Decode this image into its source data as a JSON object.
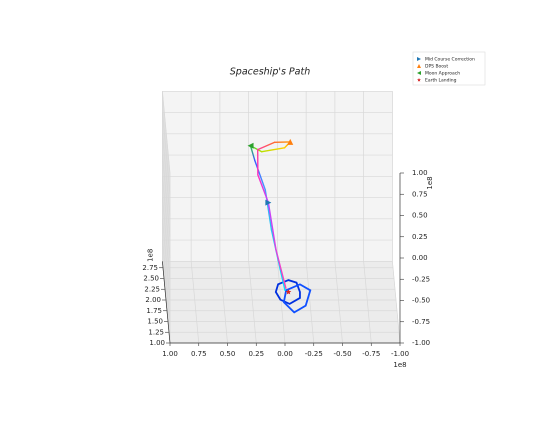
{
  "chart_data": {
    "type": "line3d",
    "title": "Spaceship's Path",
    "xlim": [
      1.0,
      -1.0
    ],
    "ylim": [
      1.0,
      2.9
    ],
    "zlim": [
      -1.0,
      1.0
    ],
    "xticks": [
      {
        "value": 1.0,
        "label": "1.00"
      },
      {
        "value": 0.75,
        "label": "0.75"
      },
      {
        "value": 0.5,
        "label": "0.50"
      },
      {
        "value": 0.25,
        "label": "0.25"
      },
      {
        "value": 0,
        "label": "0.00"
      },
      {
        "value": -0.25,
        "label": "-0.25"
      },
      {
        "value": -0.5,
        "label": "-0.50"
      },
      {
        "value": -0.75,
        "label": "-0.75"
      },
      {
        "value": -1.0,
        "label": "-1.00"
      }
    ],
    "yticks": [
      {
        "value": 1.0,
        "label": "1.00"
      },
      {
        "value": 1.25,
        "label": "1.25"
      },
      {
        "value": 1.5,
        "label": "1.50"
      },
      {
        "value": 1.75,
        "label": "1.75"
      },
      {
        "value": 2.0,
        "label": "2.00"
      },
      {
        "value": 2.25,
        "label": "2.25"
      },
      {
        "value": 2.5,
        "label": "2.50"
      },
      {
        "value": 2.75,
        "label": "2.75"
      }
    ],
    "zticks": [
      {
        "value": -1.0,
        "label": "-1.00"
      },
      {
        "value": -0.75,
        "label": "-0.75"
      },
      {
        "value": -0.5,
        "label": "-0.50"
      },
      {
        "value": -0.25,
        "label": "-0.25"
      },
      {
        "value": 0,
        "label": "0.00"
      },
      {
        "value": 0.25,
        "label": "0.25"
      },
      {
        "value": 0.5,
        "label": "0.50"
      },
      {
        "value": 0.75,
        "label": "0.75"
      },
      {
        "value": 1.0,
        "label": "1.00"
      }
    ],
    "x_offset": "1e8",
    "y_offset": "1e8",
    "z_offset": "1e8",
    "grid": true,
    "trajectory": {
      "x": [
        0,
        0.03,
        0.09,
        0.13,
        0.21,
        0.24,
        0.14,
        -0.06,
        -0.11,
        0.03,
        0.18,
        0.19,
        0.11,
        0.06,
        -0.01
      ],
      "y": [
        1.0,
        1.33,
        1.79,
        2.19,
        2.52,
        2.72,
        2.78,
        2.85,
        2.85,
        2.78,
        2.65,
        2.32,
        1.99,
        1.53,
        1.07
      ],
      "z": [
        -0.38,
        -0.3,
        -0.07,
        0.2,
        0.38,
        0.45,
        0.35,
        0.36,
        0.43,
        0.46,
        0.44,
        0.31,
        0.15,
        -0.17,
        -0.39
      ],
      "colors": [
        "#00e5ff",
        "#00d8ff",
        "#20c8f0",
        "#4a9bff",
        "#3a5cff",
        "#2ecc40",
        "#b8e000",
        "#ffd000",
        "#ff9a00",
        "#ff6a30",
        "#ff3d9a",
        "#ff2ec0",
        "#c040ff",
        "#e040e0",
        "#ff40b0"
      ]
    },
    "earth_orbits": [
      {
        "color": "#0030e0",
        "x": [
          -0.13,
          -0.1,
          -0.03,
          0.06,
          0.08,
          0.04,
          -0.04,
          -0.13
        ],
        "y": [
          1.0,
          1.0,
          1.0,
          1.0,
          1.0,
          1.0,
          1.0,
          1.0
        ],
        "z": [
          -0.4,
          -0.29,
          -0.26,
          -0.31,
          -0.4,
          -0.49,
          -0.54,
          -0.47
        ]
      },
      {
        "color": "#1050ff",
        "x": [
          -0.22,
          -0.13,
          -0.01,
          0.01,
          -0.08,
          -0.18
        ],
        "y": [
          1.0,
          1.0,
          1.0,
          1.0,
          1.0,
          1.0
        ],
        "z": [
          -0.38,
          -0.31,
          -0.38,
          -0.52,
          -0.64,
          -0.56
        ]
      }
    ],
    "markers": [
      {
        "name": "Mid Course Correction",
        "color": "#1f77b4",
        "shape": "triangle-right",
        "x": 0.11,
        "y": 1.99,
        "z": 0.15
      },
      {
        "name": "DPS Boost",
        "color": "#ff7f0e",
        "shape": "triangle-up",
        "x": -0.11,
        "y": 2.85,
        "z": 0.43
      },
      {
        "name": "Moon Approach",
        "color": "#2ca02c",
        "shape": "triangle-left",
        "x": 0.24,
        "y": 2.72,
        "z": 0.45
      },
      {
        "name": "Earth Landing",
        "color": "#d62728",
        "shape": "star",
        "x": -0.03,
        "y": 1.0,
        "z": -0.4
      }
    ]
  }
}
